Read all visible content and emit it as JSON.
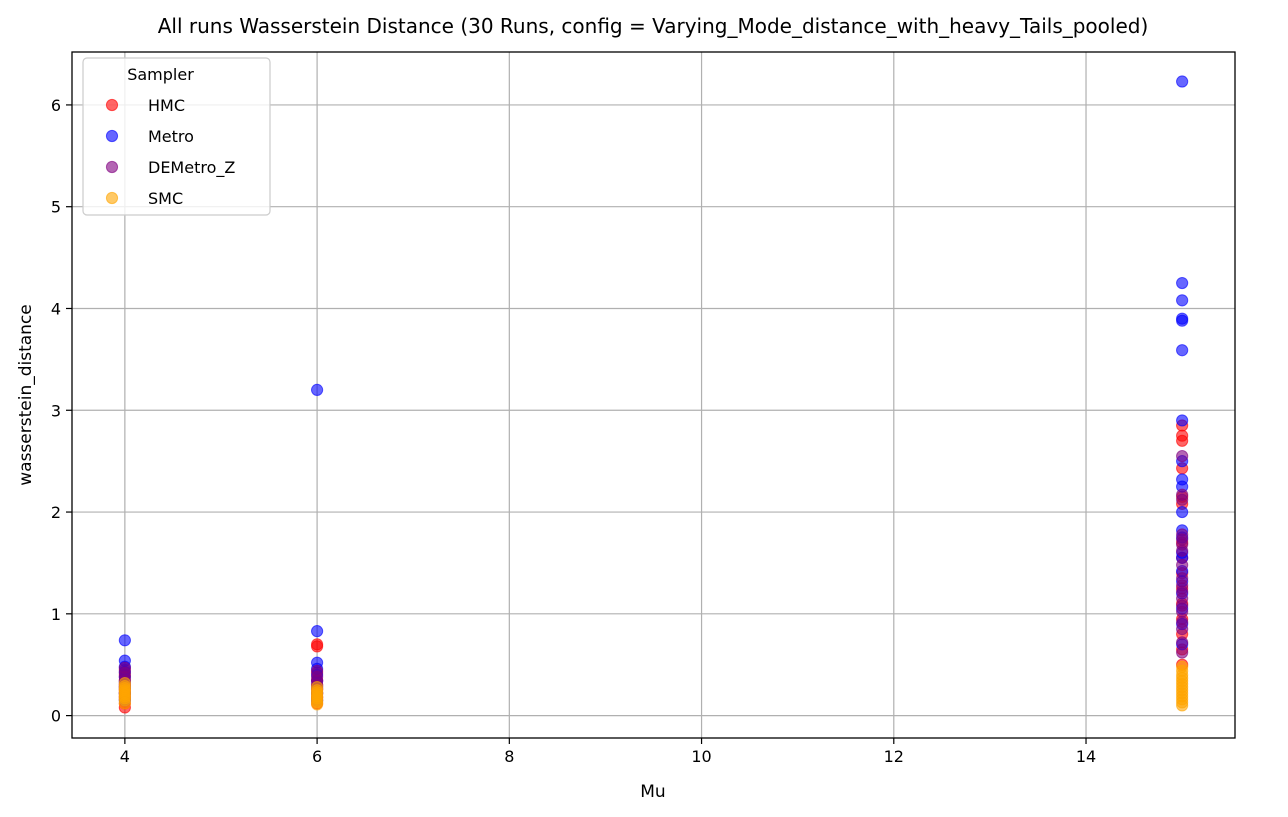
{
  "chart_data": {
    "type": "scatter",
    "title": "All runs Wasserstein Distance (30 Runs, config = Varying_Mode_distance_with_heavy_Tails_pooled)",
    "xlabel": "Mu",
    "ylabel": "wasserstein_distance",
    "xlim": [
      3.45,
      15.55
    ],
    "ylim": [
      -0.22,
      6.52
    ],
    "xticks": [
      4,
      6,
      8,
      10,
      12,
      14
    ],
    "yticks": [
      0,
      1,
      2,
      3,
      4,
      5,
      6
    ],
    "grid": true,
    "legend": {
      "title": "Sampler",
      "placement": "top-left"
    },
    "series": [
      {
        "name": "HMC",
        "color": "#ff0000",
        "points": [
          {
            "x": 4,
            "y": 0.08
          },
          {
            "x": 4,
            "y": 0.12
          },
          {
            "x": 4,
            "y": 0.16
          },
          {
            "x": 4,
            "y": 0.19
          },
          {
            "x": 4,
            "y": 0.22
          },
          {
            "x": 4,
            "y": 0.25
          },
          {
            "x": 4,
            "y": 0.28
          },
          {
            "x": 4,
            "y": 0.31
          },
          {
            "x": 4,
            "y": 0.35
          },
          {
            "x": 4,
            "y": 0.4
          },
          {
            "x": 4,
            "y": 0.45
          },
          {
            "x": 6,
            "y": 0.12
          },
          {
            "x": 6,
            "y": 0.15
          },
          {
            "x": 6,
            "y": 0.18
          },
          {
            "x": 6,
            "y": 0.22
          },
          {
            "x": 6,
            "y": 0.26
          },
          {
            "x": 6,
            "y": 0.3
          },
          {
            "x": 6,
            "y": 0.35
          },
          {
            "x": 6,
            "y": 0.42
          },
          {
            "x": 6,
            "y": 0.68
          },
          {
            "x": 6,
            "y": 0.7
          },
          {
            "x": 15,
            "y": 0.5
          },
          {
            "x": 15,
            "y": 0.65
          },
          {
            "x": 15,
            "y": 0.8
          },
          {
            "x": 15,
            "y": 0.95
          },
          {
            "x": 15,
            "y": 1.1
          },
          {
            "x": 15,
            "y": 1.25
          },
          {
            "x": 15,
            "y": 1.4
          },
          {
            "x": 15,
            "y": 1.55
          },
          {
            "x": 15,
            "y": 1.7
          },
          {
            "x": 15,
            "y": 2.08
          },
          {
            "x": 15,
            "y": 2.15
          },
          {
            "x": 15,
            "y": 2.43
          },
          {
            "x": 15,
            "y": 2.7
          },
          {
            "x": 15,
            "y": 2.75
          },
          {
            "x": 15,
            "y": 2.85
          }
        ]
      },
      {
        "name": "Metro",
        "color": "#0000ff",
        "points": [
          {
            "x": 4,
            "y": 0.15
          },
          {
            "x": 4,
            "y": 0.22
          },
          {
            "x": 4,
            "y": 0.28
          },
          {
            "x": 4,
            "y": 0.33
          },
          {
            "x": 4,
            "y": 0.38
          },
          {
            "x": 4,
            "y": 0.43
          },
          {
            "x": 4,
            "y": 0.48
          },
          {
            "x": 4,
            "y": 0.54
          },
          {
            "x": 4,
            "y": 0.74
          },
          {
            "x": 6,
            "y": 0.15
          },
          {
            "x": 6,
            "y": 0.22
          },
          {
            "x": 6,
            "y": 0.28
          },
          {
            "x": 6,
            "y": 0.34
          },
          {
            "x": 6,
            "y": 0.4
          },
          {
            "x": 6,
            "y": 0.46
          },
          {
            "x": 6,
            "y": 0.52
          },
          {
            "x": 6,
            "y": 0.83
          },
          {
            "x": 6,
            "y": 3.2
          },
          {
            "x": 15,
            "y": 0.7
          },
          {
            "x": 15,
            "y": 0.9
          },
          {
            "x": 15,
            "y": 1.05
          },
          {
            "x": 15,
            "y": 1.2
          },
          {
            "x": 15,
            "y": 1.32
          },
          {
            "x": 15,
            "y": 1.42
          },
          {
            "x": 15,
            "y": 1.55
          },
          {
            "x": 15,
            "y": 1.6
          },
          {
            "x": 15,
            "y": 1.75
          },
          {
            "x": 15,
            "y": 1.82
          },
          {
            "x": 15,
            "y": 2.0
          },
          {
            "x": 15,
            "y": 2.25
          },
          {
            "x": 15,
            "y": 2.32
          },
          {
            "x": 15,
            "y": 2.5
          },
          {
            "x": 15,
            "y": 2.9
          },
          {
            "x": 15,
            "y": 3.59
          },
          {
            "x": 15,
            "y": 3.88
          },
          {
            "x": 15,
            "y": 3.9
          },
          {
            "x": 15,
            "y": 4.08
          },
          {
            "x": 15,
            "y": 4.25
          },
          {
            "x": 15,
            "y": 6.23
          }
        ]
      },
      {
        "name": "DEMetro_Z",
        "color": "#800080",
        "points": [
          {
            "x": 4,
            "y": 0.18
          },
          {
            "x": 4,
            "y": 0.22
          },
          {
            "x": 4,
            "y": 0.26
          },
          {
            "x": 4,
            "y": 0.3
          },
          {
            "x": 4,
            "y": 0.34
          },
          {
            "x": 4,
            "y": 0.38
          },
          {
            "x": 4,
            "y": 0.42
          },
          {
            "x": 4,
            "y": 0.47
          },
          {
            "x": 6,
            "y": 0.18
          },
          {
            "x": 6,
            "y": 0.22
          },
          {
            "x": 6,
            "y": 0.26
          },
          {
            "x": 6,
            "y": 0.3
          },
          {
            "x": 6,
            "y": 0.34
          },
          {
            "x": 6,
            "y": 0.38
          },
          {
            "x": 6,
            "y": 0.44
          },
          {
            "x": 15,
            "y": 0.62
          },
          {
            "x": 15,
            "y": 0.72
          },
          {
            "x": 15,
            "y": 0.85
          },
          {
            "x": 15,
            "y": 0.92
          },
          {
            "x": 15,
            "y": 1.02
          },
          {
            "x": 15,
            "y": 1.08
          },
          {
            "x": 15,
            "y": 1.15
          },
          {
            "x": 15,
            "y": 1.22
          },
          {
            "x": 15,
            "y": 1.28
          },
          {
            "x": 15,
            "y": 1.35
          },
          {
            "x": 15,
            "y": 1.48
          },
          {
            "x": 15,
            "y": 1.62
          },
          {
            "x": 15,
            "y": 1.68
          },
          {
            "x": 15,
            "y": 1.73
          },
          {
            "x": 15,
            "y": 1.78
          },
          {
            "x": 15,
            "y": 2.12
          },
          {
            "x": 15,
            "y": 2.17
          },
          {
            "x": 15,
            "y": 2.55
          }
        ]
      },
      {
        "name": "SMC",
        "color": "#ffa500",
        "points": [
          {
            "x": 4,
            "y": 0.12
          },
          {
            "x": 4,
            "y": 0.15
          },
          {
            "x": 4,
            "y": 0.17
          },
          {
            "x": 4,
            "y": 0.19
          },
          {
            "x": 4,
            "y": 0.21
          },
          {
            "x": 4,
            "y": 0.23
          },
          {
            "x": 4,
            "y": 0.25
          },
          {
            "x": 4,
            "y": 0.27
          },
          {
            "x": 4,
            "y": 0.29
          },
          {
            "x": 4,
            "y": 0.32
          },
          {
            "x": 6,
            "y": 0.11
          },
          {
            "x": 6,
            "y": 0.13
          },
          {
            "x": 6,
            "y": 0.15
          },
          {
            "x": 6,
            "y": 0.17
          },
          {
            "x": 6,
            "y": 0.19
          },
          {
            "x": 6,
            "y": 0.21
          },
          {
            "x": 6,
            "y": 0.23
          },
          {
            "x": 6,
            "y": 0.25
          },
          {
            "x": 6,
            "y": 0.28
          },
          {
            "x": 15,
            "y": 0.1
          },
          {
            "x": 15,
            "y": 0.13
          },
          {
            "x": 15,
            "y": 0.16
          },
          {
            "x": 15,
            "y": 0.19
          },
          {
            "x": 15,
            "y": 0.22
          },
          {
            "x": 15,
            "y": 0.25
          },
          {
            "x": 15,
            "y": 0.28
          },
          {
            "x": 15,
            "y": 0.31
          },
          {
            "x": 15,
            "y": 0.34
          },
          {
            "x": 15,
            "y": 0.37
          },
          {
            "x": 15,
            "y": 0.4
          },
          {
            "x": 15,
            "y": 0.44
          },
          {
            "x": 15,
            "y": 0.48
          }
        ]
      }
    ]
  }
}
